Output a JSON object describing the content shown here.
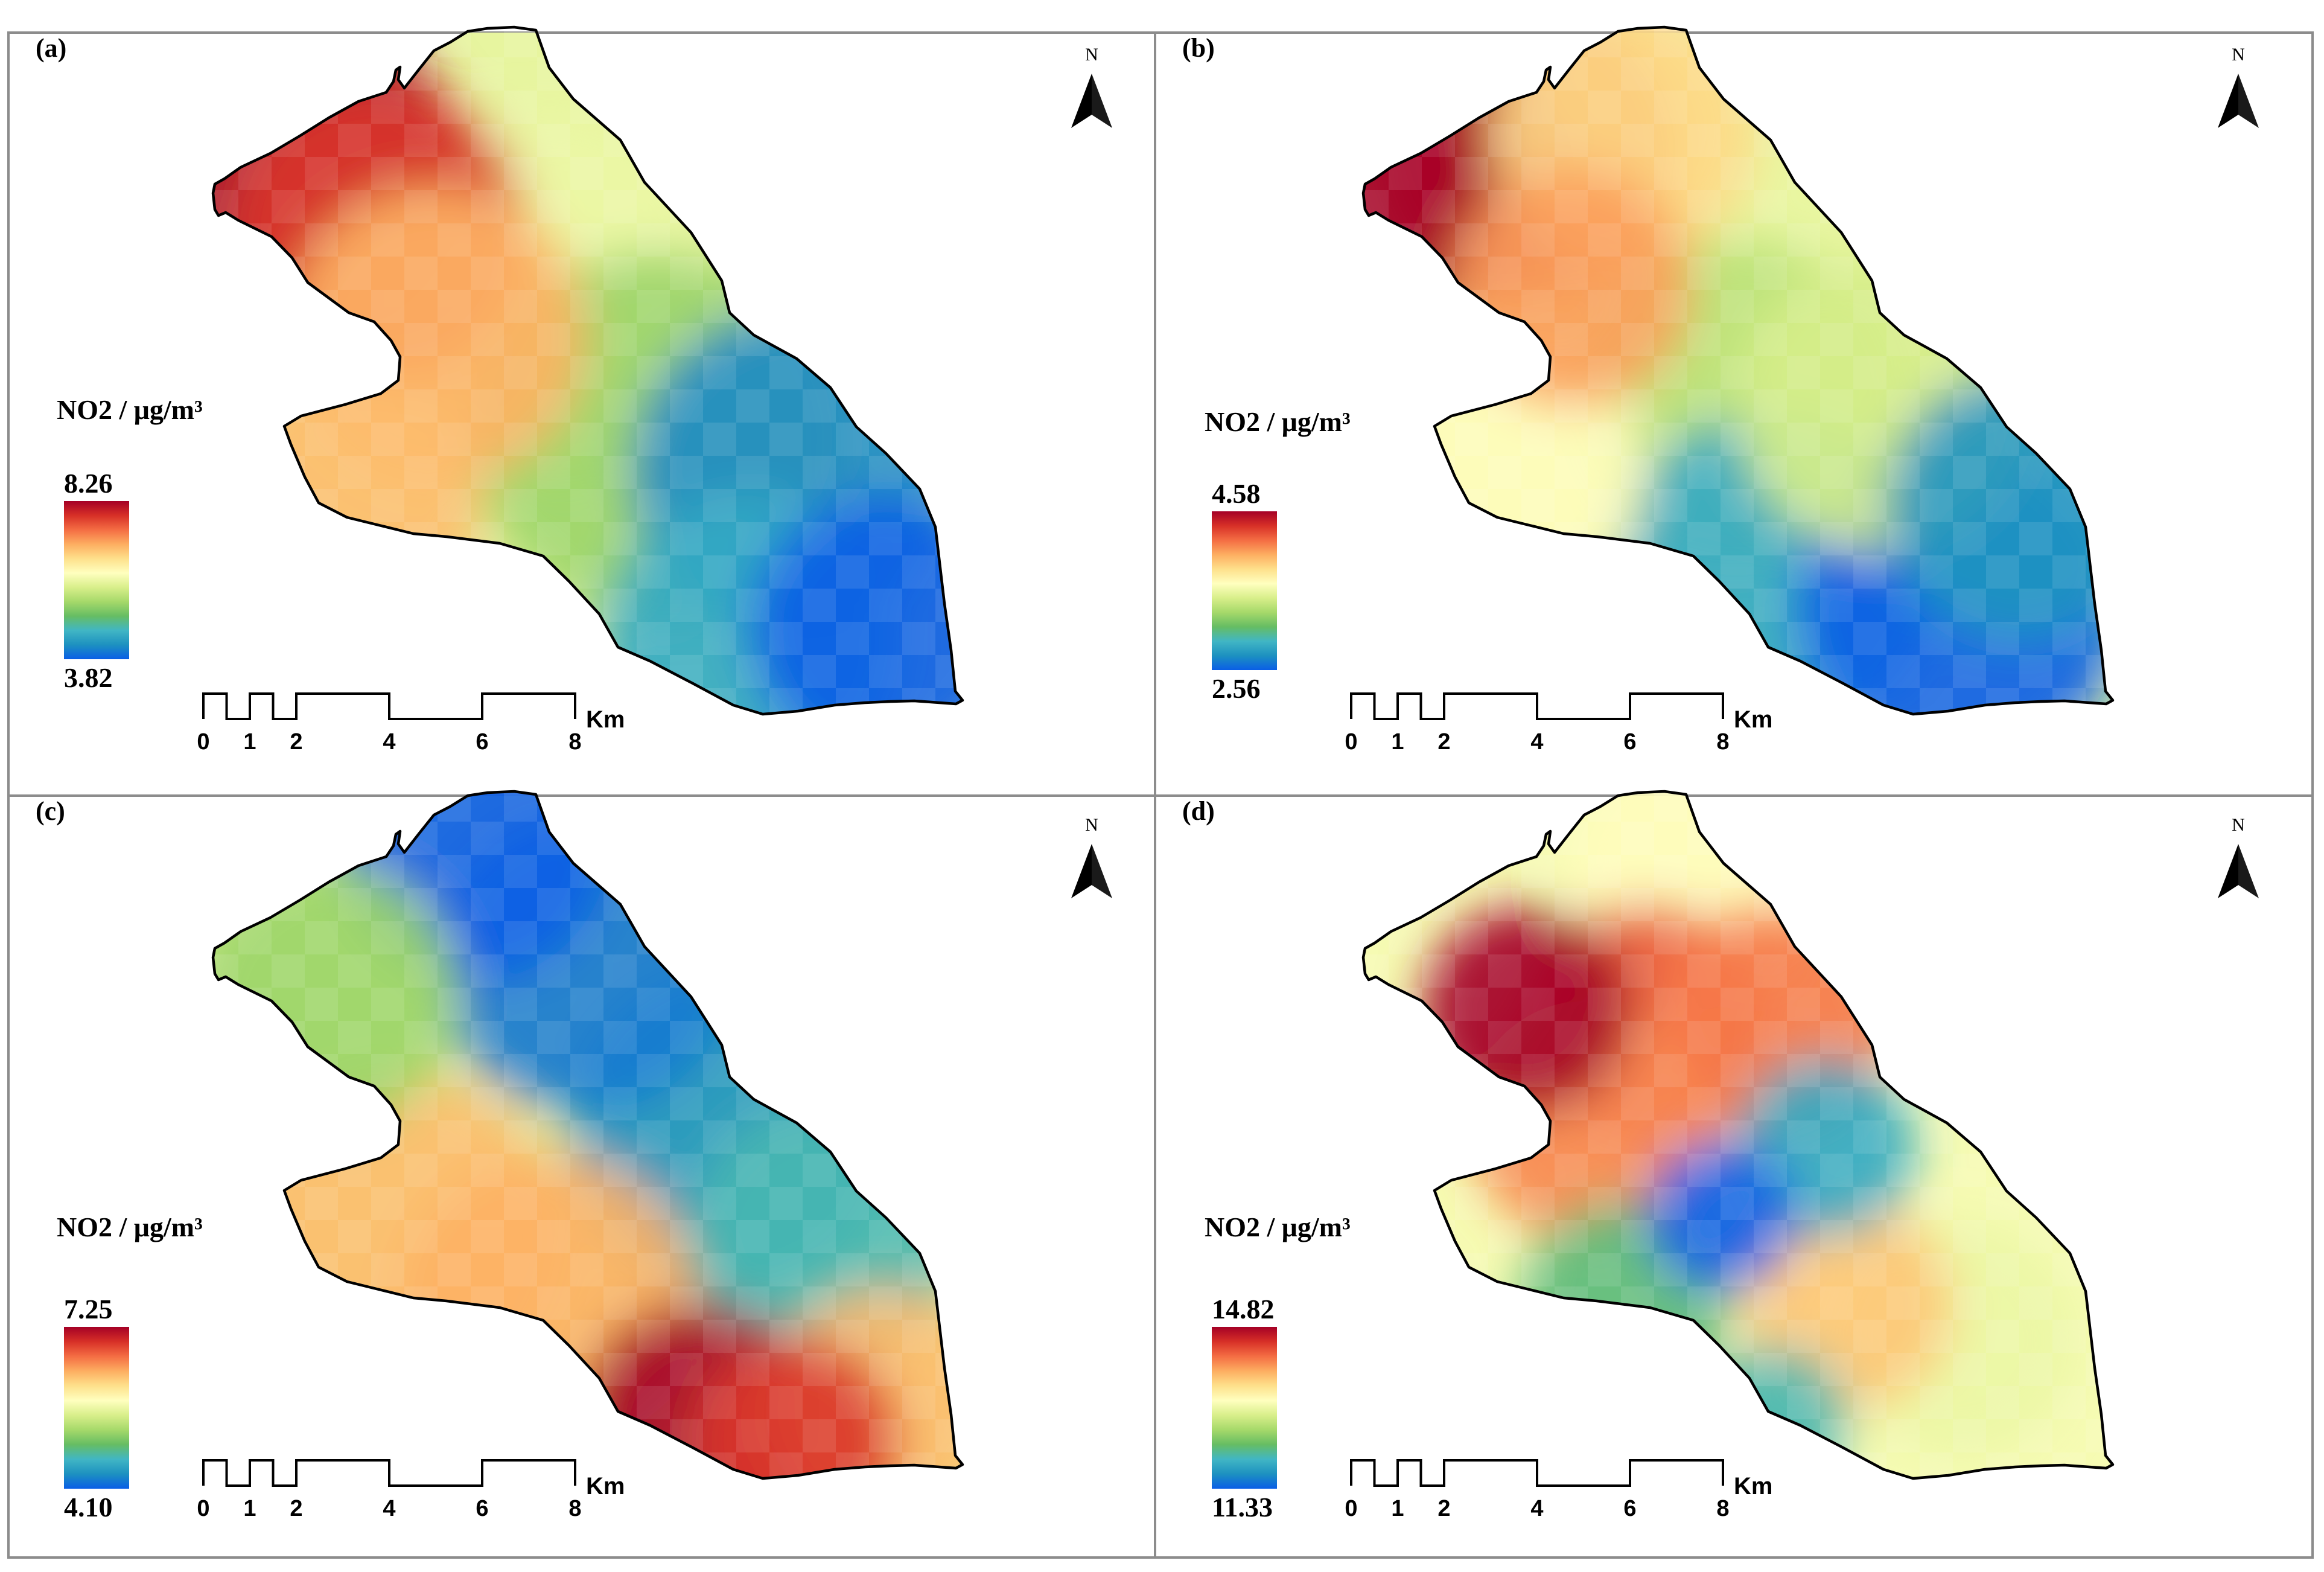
{
  "figure": {
    "colors": {
      "ramp": [
        "#a50026",
        "#d73027",
        "#f46d43",
        "#fdae61",
        "#fee08b",
        "#ffffbf",
        "#d9ef8b",
        "#a6d96a",
        "#66bd63",
        "#41b6c4",
        "#1d91c0",
        "#0a5ee6"
      ],
      "outline": "#000000",
      "frame": "#8c8c8c"
    },
    "legend_title": "NO2 / μg/m³",
    "north_letter": "N",
    "scale_bar": {
      "ticks": [
        "0",
        "1",
        "2",
        "4",
        "6",
        "8"
      ],
      "unit": "Km"
    },
    "panels": [
      {
        "label": "(a)",
        "legend_max": "8.26",
        "legend_min": "3.82",
        "pattern": "west-high / east-low gradient",
        "hotspots": [
          {
            "lon": 0.12,
            "lat": 0.78,
            "v": 1.0,
            "r": 0.22
          },
          {
            "lon": 0.22,
            "lat": 0.7,
            "v": 0.9,
            "r": 0.2
          },
          {
            "lon": 0.3,
            "lat": 0.55,
            "v": 0.72,
            "r": 0.2
          },
          {
            "lon": 0.18,
            "lat": 0.3,
            "v": 0.7,
            "r": 0.18
          },
          {
            "lon": 0.45,
            "lat": 0.6,
            "v": 0.5,
            "r": 0.25
          },
          {
            "lon": 0.6,
            "lat": 0.4,
            "v": 0.35,
            "r": 0.25
          },
          {
            "lon": 0.78,
            "lat": 0.35,
            "v": 0.08,
            "r": 0.22
          },
          {
            "lon": 0.9,
            "lat": 0.12,
            "v": 0.0,
            "r": 0.18
          },
          {
            "lon": 0.72,
            "lat": 0.1,
            "v": 0.15,
            "r": 0.2
          }
        ]
      },
      {
        "label": "(b)",
        "legend_max": "4.58",
        "legend_min": "2.56",
        "pattern": "northwest-high / southeast-low",
        "hotspots": [
          {
            "lon": 0.1,
            "lat": 0.78,
            "v": 1.0,
            "r": 0.18
          },
          {
            "lon": 0.22,
            "lat": 0.82,
            "v": 0.88,
            "r": 0.2
          },
          {
            "lon": 0.28,
            "lat": 0.62,
            "v": 0.75,
            "r": 0.16
          },
          {
            "lon": 0.35,
            "lat": 0.85,
            "v": 0.65,
            "r": 0.18
          },
          {
            "lon": 0.2,
            "lat": 0.35,
            "v": 0.55,
            "r": 0.18
          },
          {
            "lon": 0.5,
            "lat": 0.45,
            "v": 0.4,
            "r": 0.22
          },
          {
            "lon": 0.7,
            "lat": 0.45,
            "v": 0.45,
            "r": 0.2
          },
          {
            "lon": 0.55,
            "lat": 0.2,
            "v": 0.15,
            "r": 0.22
          },
          {
            "lon": 0.8,
            "lat": 0.15,
            "v": 0.0,
            "r": 0.22
          },
          {
            "lon": 0.88,
            "lat": 0.3,
            "v": 0.1,
            "r": 0.18
          }
        ]
      },
      {
        "label": "(c)",
        "legend_max": "7.25",
        "legend_min": "4.10",
        "pattern": "northeast-low / southwest-high",
        "hotspots": [
          {
            "lon": 0.35,
            "lat": 0.92,
            "v": 0.0,
            "r": 0.18
          },
          {
            "lon": 0.5,
            "lat": 0.75,
            "v": 0.05,
            "r": 0.2
          },
          {
            "lon": 0.7,
            "lat": 0.5,
            "v": 0.1,
            "r": 0.22
          },
          {
            "lon": 0.82,
            "lat": 0.35,
            "v": 0.2,
            "r": 0.18
          },
          {
            "lon": 0.15,
            "lat": 0.7,
            "v": 0.35,
            "r": 0.18
          },
          {
            "lon": 0.25,
            "lat": 0.35,
            "v": 0.7,
            "r": 0.22
          },
          {
            "lon": 0.45,
            "lat": 0.25,
            "v": 0.72,
            "r": 0.2
          },
          {
            "lon": 0.65,
            "lat": 0.08,
            "v": 1.0,
            "r": 0.16
          },
          {
            "lon": 0.78,
            "lat": 0.05,
            "v": 0.9,
            "r": 0.14
          },
          {
            "lon": 0.9,
            "lat": 0.1,
            "v": 0.7,
            "r": 0.16
          }
        ]
      },
      {
        "label": "(d)",
        "legend_max": "14.82",
        "legend_min": "11.33",
        "pattern": "central east-west high band with local low spots",
        "hotspots": [
          {
            "lon": 0.22,
            "lat": 0.68,
            "v": 1.0,
            "r": 0.14
          },
          {
            "lon": 0.38,
            "lat": 0.66,
            "v": 0.85,
            "r": 0.16
          },
          {
            "lon": 0.55,
            "lat": 0.66,
            "v": 0.8,
            "r": 0.16
          },
          {
            "lon": 0.3,
            "lat": 0.52,
            "v": 0.78,
            "r": 0.16
          },
          {
            "lon": 0.45,
            "lat": 0.88,
            "v": 0.55,
            "r": 0.18
          },
          {
            "lon": 0.48,
            "lat": 0.38,
            "v": 0.0,
            "r": 0.1
          },
          {
            "lon": 0.62,
            "lat": 0.48,
            "v": 0.15,
            "r": 0.12
          },
          {
            "lon": 0.35,
            "lat": 0.25,
            "v": 0.25,
            "r": 0.14
          },
          {
            "lon": 0.65,
            "lat": 0.25,
            "v": 0.68,
            "r": 0.14
          },
          {
            "lon": 0.55,
            "lat": 0.08,
            "v": 0.2,
            "r": 0.1
          },
          {
            "lon": 0.8,
            "lat": 0.2,
            "v": 0.5,
            "r": 0.16
          }
        ]
      }
    ]
  }
}
